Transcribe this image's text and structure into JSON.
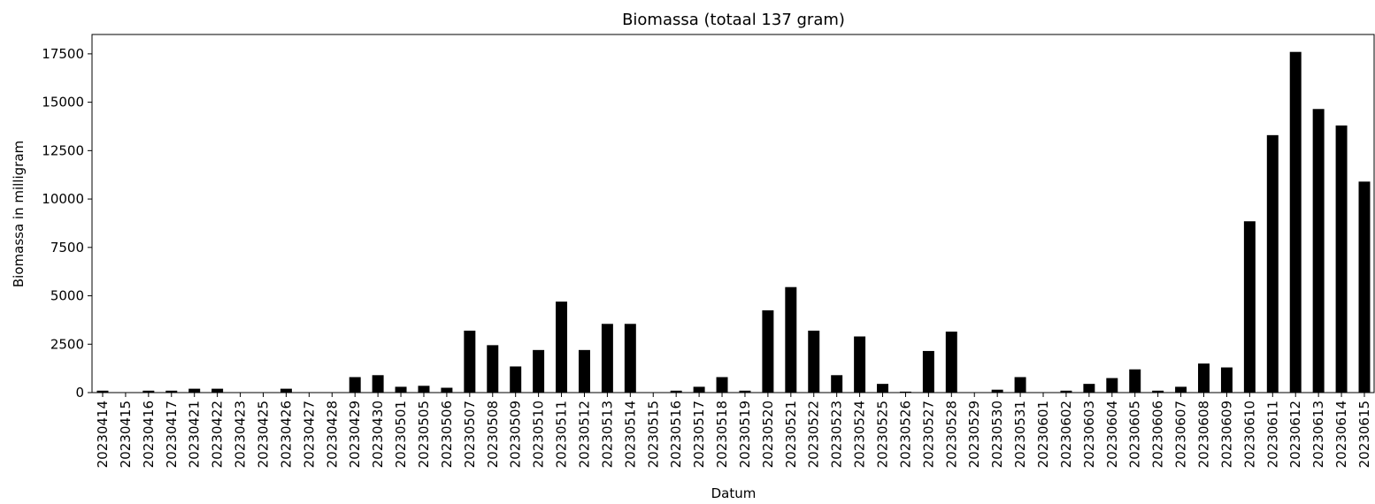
{
  "chart_data": {
    "type": "bar",
    "title": "Biomassa  (totaal 137 gram)",
    "xlabel": "Datum",
    "ylabel": "Biomassa in milligram",
    "color": "#000000",
    "categories": [
      "20230414",
      "20230415",
      "20230416",
      "20230417",
      "20230421",
      "20230422",
      "20230423",
      "20230425",
      "20230426",
      "20230427",
      "20230428",
      "20230429",
      "20230430",
      "20230501",
      "20230505",
      "20230506",
      "20230507",
      "20230508",
      "20230509",
      "20230510",
      "20230511",
      "20230512",
      "20230513",
      "20230514",
      "20230515",
      "20230516",
      "20230517",
      "20230518",
      "20230519",
      "20230520",
      "20230521",
      "20230522",
      "20230523",
      "20230524",
      "20230525",
      "20230526",
      "20230527",
      "20230528",
      "20230529",
      "20230530",
      "20230531",
      "20230601",
      "20230602",
      "20230603",
      "20230604",
      "20230605",
      "20230606",
      "20230607",
      "20230608",
      "20230609",
      "20230610",
      "20230611",
      "20230612",
      "20230613",
      "20230614",
      "20230615"
    ],
    "values": [
      100,
      0,
      100,
      100,
      200,
      200,
      0,
      0,
      200,
      0,
      0,
      800,
      900,
      300,
      350,
      250,
      3200,
      2450,
      1350,
      2200,
      4700,
      2200,
      3550,
      3550,
      0,
      100,
      300,
      800,
      100,
      4250,
      5450,
      3200,
      900,
      2900,
      450,
      50,
      2150,
      3150,
      0,
      150,
      800,
      0,
      100,
      450,
      750,
      1200,
      100,
      300,
      1500,
      1300,
      8850,
      13300,
      17600,
      14650,
      13800,
      10900
    ],
    "ylim": [
      0,
      18500
    ],
    "yticks": [
      0,
      2500,
      5000,
      7500,
      10000,
      12500,
      15000,
      17500
    ],
    "grid": false
  }
}
